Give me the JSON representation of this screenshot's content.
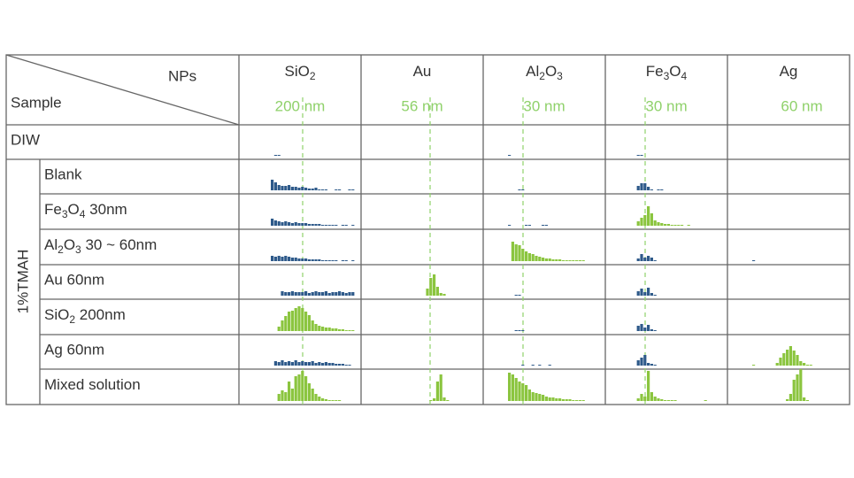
{
  "corner": {
    "top": "NPs",
    "bottom": "Sample"
  },
  "colors": {
    "blue": "#2e5a8a",
    "green": "#8bc53f"
  },
  "columns": [
    {
      "name": [
        "SiO",
        "2"
      ],
      "size": "200 nm"
    },
    {
      "name": [
        "Au"
      ],
      "size": "56 nm"
    },
    {
      "name": [
        "Al",
        "2",
        "O",
        "3"
      ],
      "size": "30 nm"
    },
    {
      "name": [
        "Fe",
        "3",
        "O",
        "4"
      ],
      "size": "30 nm"
    },
    {
      "name": [
        "Ag"
      ],
      "size": "60 nm"
    }
  ],
  "group": "1%TMAH",
  "rows": [
    {
      "label": [
        "DIW"
      ],
      "cells": [
        {
          "color": "blue",
          "values": [
            0,
            1,
            1
          ]
        },
        null,
        {
          "color": "blue",
          "values": [
            1
          ]
        },
        {
          "color": "blue",
          "values": [
            0,
            0,
            1,
            1
          ]
        },
        null
      ]
    },
    {
      "label": [
        "Blank"
      ],
      "cells": [
        {
          "color": "blue",
          "values": [
            12,
            9,
            6,
            5,
            5,
            6,
            4,
            4,
            3,
            4,
            3,
            2,
            2,
            3,
            1,
            1,
            1,
            0,
            0,
            1,
            1,
            0,
            0,
            1,
            1
          ]
        },
        null,
        {
          "color": "blue",
          "values": [
            0,
            0,
            0,
            1,
            1
          ]
        },
        {
          "color": "blue",
          "values": [
            0,
            0,
            5,
            8,
            8,
            4,
            1,
            0,
            1,
            1
          ]
        },
        null
      ]
    },
    {
      "label": [
        "Fe",
        "3",
        "O",
        "4",
        " 30nm"
      ],
      "cells": [
        {
          "color": "blue",
          "values": [
            8,
            6,
            5,
            4,
            5,
            4,
            3,
            4,
            3,
            3,
            3,
            2,
            2,
            2,
            2,
            1,
            1,
            1,
            1,
            1,
            0,
            1,
            1,
            0,
            1
          ]
        },
        null,
        {
          "color": "blue",
          "values": [
            1,
            0,
            0,
            0,
            0,
            1,
            1,
            0,
            0,
            0,
            1,
            1
          ]
        },
        {
          "color": "green",
          "values": [
            0,
            0,
            5,
            9,
            12,
            22,
            14,
            6,
            4,
            3,
            2,
            2,
            1,
            1,
            1,
            1,
            0,
            1
          ]
        },
        null
      ]
    },
    {
      "label": [
        "Al",
        "2",
        "O",
        "3",
        " 30 ~ 60nm"
      ],
      "cells": [
        {
          "color": "blue",
          "values": [
            6,
            5,
            6,
            5,
            6,
            5,
            4,
            4,
            3,
            3,
            3,
            2,
            2,
            2,
            2,
            1,
            1,
            1,
            1,
            1,
            0,
            1,
            1,
            0,
            1
          ]
        },
        null,
        {
          "color": "green",
          "values": [
            0,
            22,
            19,
            18,
            14,
            11,
            9,
            8,
            6,
            5,
            4,
            3,
            3,
            2,
            2,
            2,
            1,
            1,
            1,
            1,
            1,
            1,
            1
          ]
        },
        {
          "color": "blue",
          "values": [
            0,
            0,
            3,
            8,
            4,
            6,
            4,
            1
          ]
        },
        {
          "color": "blue",
          "values": [
            1
          ]
        }
      ]
    },
    {
      "label": [
        "Au 60nm"
      ],
      "cells": [
        {
          "color": "blue",
          "values": [
            0,
            0,
            0,
            5,
            4,
            4,
            5,
            4,
            4,
            4,
            5,
            3,
            4,
            5,
            4,
            4,
            5,
            3,
            4,
            4,
            5,
            4,
            3,
            4,
            4
          ]
        },
        {
          "color": "green",
          "values": [
            0,
            0,
            0,
            8,
            20,
            24,
            10,
            3,
            2
          ]
        },
        {
          "color": "blue",
          "values": [
            0,
            0,
            1,
            1
          ]
        },
        {
          "color": "blue",
          "values": [
            0,
            0,
            5,
            8,
            4,
            9,
            3,
            1
          ]
        },
        null
      ]
    },
    {
      "label": [
        "SiO",
        "2",
        " 200nm"
      ],
      "cells": [
        {
          "color": "green",
          "values": [
            0,
            0,
            5,
            12,
            17,
            22,
            23,
            26,
            28,
            26,
            22,
            18,
            12,
            8,
            6,
            5,
            4,
            4,
            3,
            3,
            2,
            2,
            1,
            1,
            1
          ]
        },
        null,
        {
          "color": "blue",
          "values": [
            0,
            0,
            1,
            1,
            1
          ]
        },
        {
          "color": "blue",
          "values": [
            0,
            0,
            6,
            8,
            4,
            7,
            2,
            1
          ]
        },
        null
      ]
    },
    {
      "label": [
        "Ag 60nm"
      ],
      "cells": [
        {
          "color": "blue",
          "values": [
            0,
            5,
            4,
            6,
            4,
            5,
            4,
            6,
            4,
            5,
            4,
            4,
            5,
            3,
            4,
            3,
            4,
            3,
            3,
            2,
            2,
            2,
            1,
            1
          ]
        },
        null,
        {
          "color": "blue",
          "values": [
            0,
            0,
            0,
            0,
            1,
            0,
            0,
            1,
            0,
            1,
            0,
            0,
            1
          ]
        },
        {
          "color": "blue",
          "values": [
            0,
            0,
            6,
            9,
            12,
            3,
            2,
            1
          ]
        },
        {
          "color": "green",
          "values": [
            1,
            0,
            0,
            0,
            0,
            0,
            0,
            3,
            9,
            14,
            18,
            22,
            17,
            12,
            5,
            3,
            1,
            1
          ]
        }
      ]
    },
    {
      "label": [
        "Mixed solution"
      ],
      "cells": [
        {
          "color": "green",
          "values": [
            0,
            0,
            8,
            12,
            10,
            22,
            14,
            28,
            30,
            34,
            28,
            20,
            14,
            8,
            5,
            3,
            2,
            1,
            1,
            1,
            1
          ]
        },
        {
          "color": "green",
          "values": [
            0,
            0,
            0,
            0,
            1,
            3,
            22,
            30,
            4,
            1
          ]
        },
        {
          "color": "green",
          "values": [
            32,
            30,
            26,
            22,
            20,
            18,
            13,
            10,
            9,
            8,
            7,
            5,
            4,
            4,
            3,
            3,
            2,
            2,
            2,
            1,
            1,
            1,
            1
          ]
        },
        {
          "color": "green",
          "values": [
            0,
            0,
            3,
            8,
            5,
            34,
            10,
            5,
            3,
            2,
            1,
            1,
            1,
            1,
            0,
            0,
            0,
            0,
            0,
            0,
            0,
            0,
            1
          ]
        },
        {
          "color": "green",
          "values": [
            0,
            0,
            0,
            0,
            0,
            0,
            0,
            0,
            0,
            0,
            2,
            8,
            24,
            30,
            36,
            4,
            1
          ]
        }
      ]
    }
  ]
}
